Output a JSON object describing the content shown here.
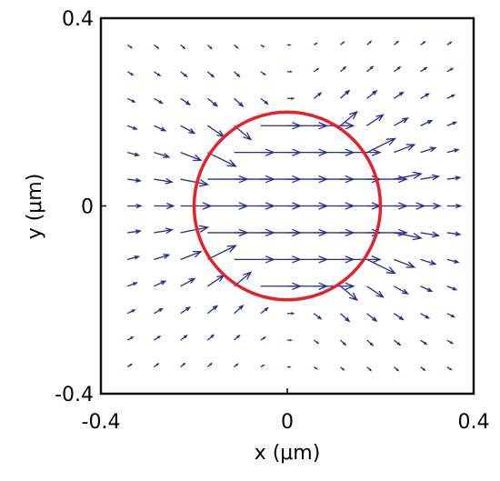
{
  "chart_data": {
    "type": "quiver",
    "xlabel": "x (μm)",
    "ylabel": "y (μm)",
    "xlim": [
      -0.4,
      0.4
    ],
    "ylim": [
      -0.4,
      0.4
    ],
    "xticks": [
      -0.4,
      0,
      0.4
    ],
    "yticks": [
      -0.4,
      0,
      0.4
    ],
    "color": "#2b2e8c",
    "x": [
      -0.343,
      -0.286,
      -0.229,
      -0.171,
      -0.114,
      -0.057,
      0,
      0.057,
      0.114,
      0.171,
      0.229,
      0.286,
      0.343
    ],
    "y": [
      -0.343,
      -0.286,
      -0.229,
      -0.171,
      -0.114,
      -0.057,
      0,
      0.057,
      0.114,
      0.171,
      0.229,
      0.286,
      0.343
    ],
    "u": [
      [
        0.0087,
        0.009,
        0.0089,
        0.0083,
        0.0073,
        0.0062,
        0.0058,
        0.0062,
        0.0073,
        0.0083,
        0.0089,
        0.009,
        0.0087
      ],
      [
        0.0115,
        0.0125,
        0.013,
        0.0126,
        0.0111,
        0.0092,
        0.0083,
        0.0092,
        0.0111,
        0.0126,
        0.013,
        0.0125,
        0.0115
      ],
      [
        0.0151,
        0.0175,
        0.0195,
        0.0203,
        0.0187,
        0.0151,
        0.013,
        0.0151,
        0.0187,
        0.0203,
        0.0195,
        0.0175,
        0.0151
      ],
      [
        0.0194,
        0.0241,
        0.0296,
        0.0347,
        0.0357,
        0.085,
        0.085,
        0.085,
        0.0357,
        0.0347,
        0.0296,
        0.0241,
        0.0194
      ],
      [
        0.0239,
        0.032,
        0.0437,
        0.0603,
        0.085,
        0.085,
        0.085,
        0.085,
        0.085,
        0.0603,
        0.0437,
        0.032,
        0.0239
      ],
      [
        0.0275,
        0.0388,
        0.0583,
        0.085,
        0.085,
        0.085,
        0.085,
        0.085,
        0.085,
        0.085,
        0.0583,
        0.0388,
        0.0275
      ],
      [
        0.0289,
        0.0416,
        0.065,
        0.085,
        0.085,
        0.085,
        0.085,
        0.085,
        0.085,
        0.085,
        0.065,
        0.0416,
        0.0289
      ],
      [
        0.0275,
        0.0388,
        0.0583,
        0.085,
        0.085,
        0.085,
        0.085,
        0.085,
        0.085,
        0.085,
        0.0583,
        0.0388,
        0.0275
      ],
      [
        0.0239,
        0.032,
        0.0437,
        0.0603,
        0.085,
        0.085,
        0.085,
        0.085,
        0.085,
        0.0603,
        0.0437,
        0.032,
        0.0239
      ],
      [
        0.0194,
        0.0241,
        0.0296,
        0.0347,
        0.0357,
        0.085,
        0.085,
        0.085,
        0.0357,
        0.0347,
        0.0296,
        0.0241,
        0.0194
      ],
      [
        0.0151,
        0.0175,
        0.0195,
        0.0203,
        0.0187,
        0.0151,
        0.013,
        0.0151,
        0.0187,
        0.0203,
        0.0195,
        0.0175,
        0.0151
      ],
      [
        0.0115,
        0.0125,
        0.013,
        0.0126,
        0.0111,
        0.0092,
        0.0083,
        0.0092,
        0.0111,
        0.0126,
        0.013,
        0.0125,
        0.0115
      ],
      [
        0.0087,
        0.009,
        0.0089,
        0.0083,
        0.0073,
        0.0062,
        0.0058,
        0.0062,
        0.0073,
        0.0083,
        0.0089,
        0.009,
        0.0087
      ]
    ],
    "v": [
      [
        0.0058,
        0.0067,
        0.0074,
        0.0074,
        0.0062,
        0.0036,
        0,
        -0.0036,
        -0.0062,
        -0.0074,
        -0.0074,
        -0.0067,
        -0.0058
      ],
      [
        0.0067,
        0.0083,
        0.0099,
        0.0108,
        0.0099,
        0.0062,
        0,
        -0.0062,
        -0.0099,
        -0.0108,
        -0.0099,
        -0.0083,
        -0.0067
      ],
      [
        0.0074,
        0.0099,
        0.013,
        0.016,
        0.0166,
        0.0115,
        0,
        -0.0115,
        -0.0166,
        -0.016,
        -0.013,
        -0.0099,
        -0.0074
      ],
      [
        0.0074,
        0.0108,
        0.016,
        0.0231,
        0.0295,
        0,
        0,
        0,
        -0.0295,
        -0.0231,
        -0.016,
        -0.0108,
        -0.0074
      ],
      [
        0.0062,
        0.0099,
        0.0166,
        0.0295,
        0,
        0,
        0,
        0,
        0,
        -0.0295,
        -0.0166,
        -0.0099,
        -0.0062
      ],
      [
        0.0036,
        0.0062,
        0.0115,
        0,
        0,
        0,
        0,
        0,
        0,
        0,
        -0.0115,
        -0.0062,
        -0.0036
      ],
      [
        0,
        0,
        0,
        0,
        0,
        0,
        0,
        0,
        0,
        0,
        0,
        0,
        0
      ],
      [
        -0.0036,
        -0.0062,
        -0.0115,
        0,
        0,
        0,
        0,
        0,
        0,
        0,
        0.0115,
        0.0062,
        0.0036
      ],
      [
        -0.0062,
        -0.0099,
        -0.0166,
        -0.0295,
        0,
        0,
        0,
        0,
        0,
        0.0295,
        0.0166,
        0.0099,
        0.0062
      ],
      [
        -0.0074,
        -0.0108,
        -0.016,
        -0.0231,
        -0.0295,
        0,
        0,
        0,
        0.0295,
        0.0231,
        0.016,
        0.0108,
        0.0074
      ],
      [
        -0.0074,
        -0.0099,
        -0.013,
        -0.016,
        -0.0166,
        -0.0115,
        0,
        0.0115,
        0.0166,
        0.016,
        0.013,
        0.0099,
        0.0074
      ],
      [
        -0.0067,
        -0.0083,
        -0.0099,
        -0.0108,
        -0.0099,
        -0.0062,
        0,
        0.0062,
        0.0099,
        0.0108,
        0.0099,
        0.0083,
        0.0067
      ],
      [
        -0.0058,
        -0.0067,
        -0.0074,
        -0.0074,
        -0.0062,
        -0.0036,
        0,
        0.0036,
        0.0062,
        0.0074,
        0.0074,
        0.0067,
        0.0058
      ]
    ],
    "circle": {
      "center": [
        0,
        0
      ],
      "radius": 0.2,
      "color": "#e3232b"
    }
  }
}
